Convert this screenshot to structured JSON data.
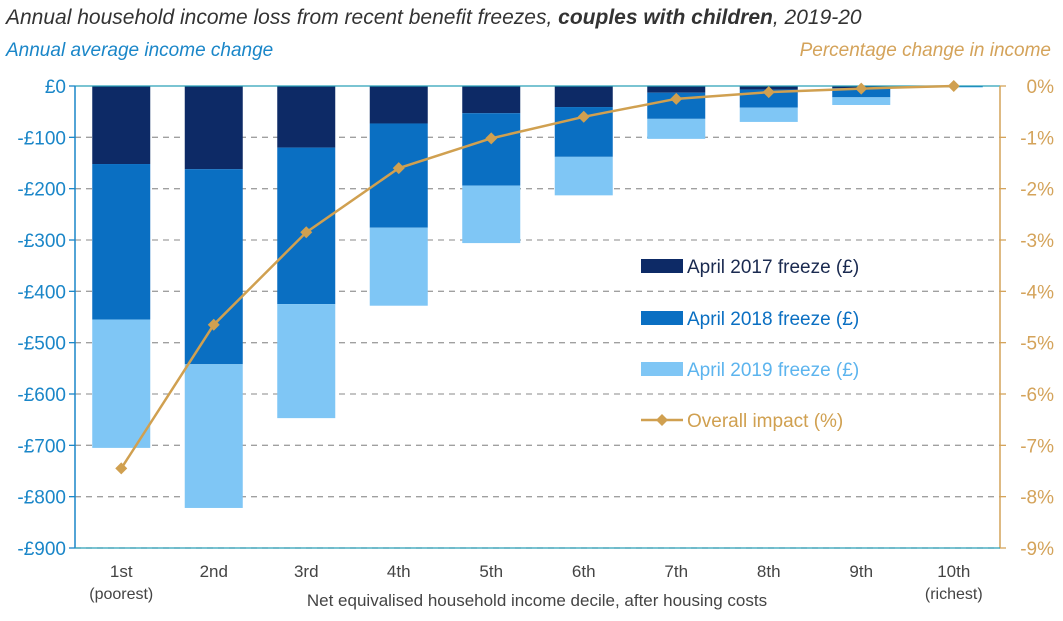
{
  "title": {
    "prefix": "Annual household income loss from recent benefit freezes, ",
    "bold": "couples with children",
    "suffix": ", 2019-20"
  },
  "colors": {
    "freeze_2017": "#0d2a66",
    "freeze_2018": "#0a6fc2",
    "freeze_2019": "#7fc6f5",
    "overall": "#d0a050",
    "left_axis": "#1a86c8",
    "right_axis": "#d4a35a"
  },
  "chart_data": {
    "type": "bar",
    "stacked": true,
    "title": "Annual household income loss from recent benefit freezes, couples with children, 2019-20",
    "ylabel": "Annual average income change",
    "y2label": "Percentage change in income",
    "xlabel": "Net equivalised household income decile, after housing costs",
    "categories": [
      "1st",
      "2nd",
      "3rd",
      "4th",
      "5th",
      "6th",
      "7th",
      "8th",
      "9th",
      "10th"
    ],
    "category_notes": [
      "(poorest)",
      "",
      "",
      "",
      "",
      "",
      "",
      "",
      "",
      "(richest)"
    ],
    "series": [
      {
        "name": "April 2017 freeze (£)",
        "axis": "left",
        "values": [
          -152,
          -162,
          -120,
          -73,
          -53,
          -41,
          -13,
          -7,
          -4,
          -1
        ]
      },
      {
        "name": "April 2018 freeze (£)",
        "axis": "left",
        "values": [
          -303,
          -380,
          -305,
          -203,
          -141,
          -97,
          -51,
          -35,
          -18,
          -1
        ]
      },
      {
        "name": "April 2019 freeze (£)",
        "axis": "left",
        "values": [
          -250,
          -280,
          -222,
          -152,
          -112,
          -75,
          -39,
          -28,
          -15,
          -1
        ]
      },
      {
        "name": "Overall impact (%)",
        "axis": "right",
        "type": "line",
        "values": [
          -7.45,
          -4.65,
          -2.85,
          -1.6,
          -1.02,
          -0.6,
          -0.25,
          -0.12,
          -0.05,
          0.0
        ]
      }
    ],
    "ylim": [
      -900,
      0
    ],
    "y2lim": [
      -9,
      0
    ],
    "yticks": [
      "£0",
      "-£100",
      "-£200",
      "-£300",
      "-£400",
      "-£500",
      "-£600",
      "-£700",
      "-£800",
      "-£900"
    ],
    "y2ticks": [
      "0%",
      "-1%",
      "-2%",
      "-3%",
      "-4%",
      "-5%",
      "-6%",
      "-7%",
      "-8%",
      "-9%"
    ],
    "grid": true,
    "legend_position": "right-center"
  }
}
